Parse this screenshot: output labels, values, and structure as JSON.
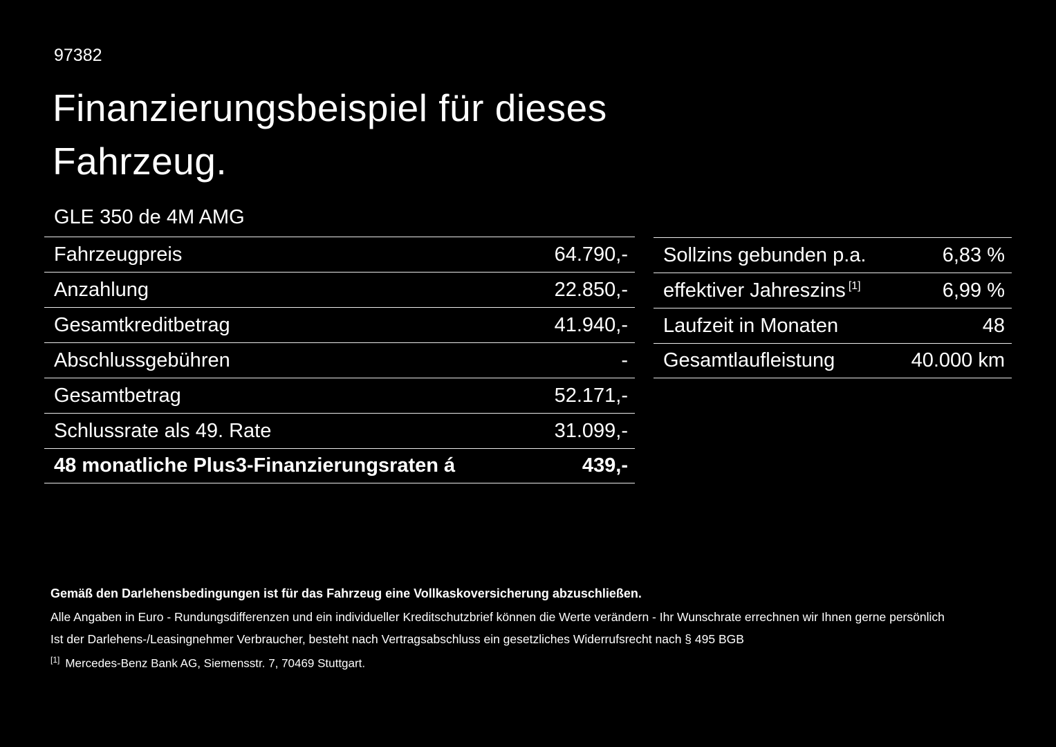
{
  "page": {
    "doc_number": "97382",
    "title": "Finanzierungsbeispiel für dieses Fahrzeug.",
    "vehicle_model": "GLE 350 de 4M AMG"
  },
  "finance_table": {
    "rows": [
      {
        "label": "Fahrzeugpreis",
        "value": "64.790,-"
      },
      {
        "label": "Anzahlung",
        "value": "22.850,-"
      },
      {
        "label": "Gesamtkreditbetrag",
        "value": "41.940,-"
      },
      {
        "label": "Abschlussgebühren",
        "value": "-"
      },
      {
        "label": "Gesamtbetrag",
        "value": "52.171,-"
      },
      {
        "label": "Schlussrate als 49. Rate",
        "value": "31.099,-"
      },
      {
        "label": "48 monatliche Plus3-Finanzierungsraten á",
        "value": "439,-"
      }
    ]
  },
  "conditions_table": {
    "rows": [
      {
        "label": "Sollzins gebunden p.a.",
        "footnote_marker": "",
        "value": "6,83 %"
      },
      {
        "label": "effektiver Jahreszins",
        "footnote_marker": "[1]",
        "value": "6,99 %"
      },
      {
        "label": "Laufzeit in Monaten",
        "footnote_marker": "",
        "value": "48"
      },
      {
        "label": "Gesamtlaufleistung",
        "footnote_marker": "",
        "value": "40.000 km"
      }
    ]
  },
  "fineprint": {
    "insurance_note": "Gemäß den Darlehensbedingungen ist für das Fahrzeug eine Vollkaskoversicherung abzuschließen.",
    "rounding_note": "Alle Angaben in Euro - Rundungsdifferenzen und ein individueller Kreditschutzbrief können die Werte verändern - Ihr Wunschrate errechnen wir Ihnen gerne persönlich",
    "withdrawal_note": "Ist der Darlehens-/Leasingnehmer Verbraucher, besteht nach Vertragsabschluss ein gesetzliches Widerrufsrecht nach § 495 BGB",
    "bank_footnote_marker": "[1]",
    "bank_note": "Mercedes-Benz Bank AG, Siemensstr. 7, 70469 Stuttgart."
  },
  "colors": {
    "background": "#000000",
    "text": "#ffffff",
    "divider": "#ededed"
  }
}
